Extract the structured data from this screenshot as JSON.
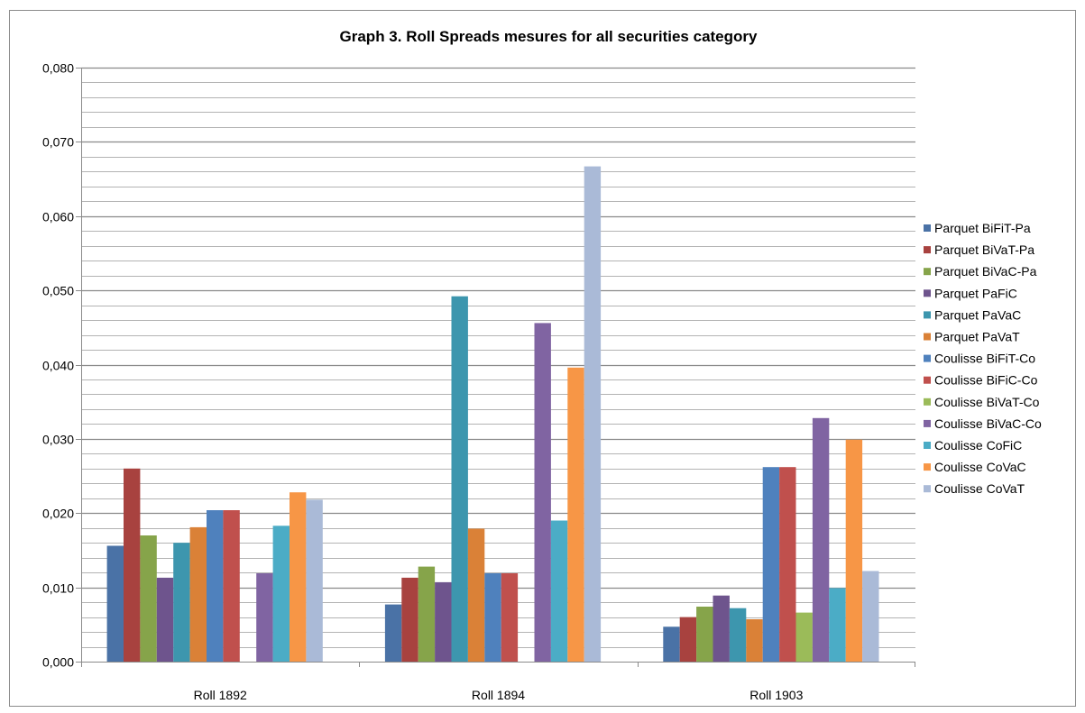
{
  "chart_data": {
    "type": "bar",
    "title": "Graph 3. Roll Spreads mesures for all securities category",
    "xlabel": "",
    "ylabel": "",
    "ylim": [
      0,
      0.08
    ],
    "ytick_step": 0.01,
    "ytick_labels": [
      "0,000",
      "0,010",
      "0,020",
      "0,030",
      "0,040",
      "0,050",
      "0,060",
      "0,070",
      "0,080"
    ],
    "minor_grid_step": 0.002,
    "grid": true,
    "legend_position": "right",
    "categories": [
      "Roll 1892",
      "Roll 1894",
      "Roll 1903"
    ],
    "series": [
      {
        "name": "Parquet BiFiT-Pa",
        "color": "#4a72a6",
        "values": [
          0.0156,
          0.0077,
          0.0047
        ]
      },
      {
        "name": "Parquet BiVaT-Pa",
        "color": "#a8423f",
        "values": [
          0.026,
          0.0113,
          0.006
        ]
      },
      {
        "name": "Parquet BiVaC-Pa",
        "color": "#86a44a",
        "values": [
          0.017,
          0.0128,
          0.0074
        ]
      },
      {
        "name": "Parquet PaFiC",
        "color": "#6e548d",
        "values": [
          0.0113,
          0.0107,
          0.0089
        ]
      },
      {
        "name": "Parquet PaVaC",
        "color": "#3d96ae",
        "values": [
          0.016,
          0.0492,
          0.0072
        ]
      },
      {
        "name": "Parquet PaVaT",
        "color": "#da8137",
        "values": [
          0.0181,
          0.0179,
          0.0057
        ]
      },
      {
        "name": "Coulisse BiFiT-Co",
        "color": "#4f81bd",
        "values": [
          0.0204,
          0.0119,
          0.0262
        ]
      },
      {
        "name": "Coulisse BiFiC-Co",
        "color": "#c0504d",
        "values": [
          0.0204,
          0.0119,
          0.0262
        ]
      },
      {
        "name": "Coulisse BiVaT-Co",
        "color": "#9bbb59",
        "values": [
          0.0,
          0.0,
          0.0066
        ]
      },
      {
        "name": "Coulisse BiVaC-Co",
        "color": "#8064a2",
        "values": [
          0.0119,
          0.0456,
          0.0328
        ]
      },
      {
        "name": "Coulisse CoFiC",
        "color": "#4bacc6",
        "values": [
          0.0183,
          0.019,
          0.0099
        ]
      },
      {
        "name": "Coulisse CoVaC",
        "color": "#f79646",
        "values": [
          0.0228,
          0.0396,
          0.0299
        ]
      },
      {
        "name": "Coulisse CoVaT",
        "color": "#aabad7",
        "values": [
          0.0218,
          0.0667,
          0.0122
        ]
      }
    ]
  }
}
